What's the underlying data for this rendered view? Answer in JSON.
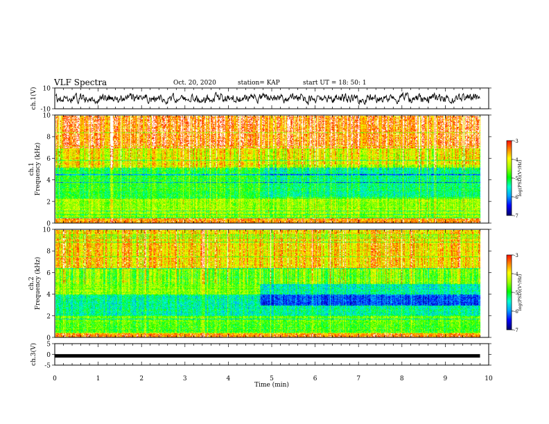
{
  "header": {
    "title": "VLF Spectra",
    "date": "Oct. 20, 2020",
    "station": "station= KAP",
    "start": "start  UT =   18: 50: 1"
  },
  "colors": {
    "colormap": [
      "#000070",
      "#0000ff",
      "#00a0ff",
      "#00ffd0",
      "#00ff00",
      "#a0ff00",
      "#ffff00",
      "#ff8000",
      "#ff0000",
      "#ffffff"
    ]
  },
  "chart_data": [
    {
      "type": "line",
      "panel": "ch1-waveform",
      "ylabel": "ch.1(V)",
      "ylim": [
        -10,
        10
      ],
      "yticks": [
        "10",
        "-10"
      ],
      "x": [
        0,
        0.5,
        1,
        1.5,
        2,
        2.5,
        3,
        3.5,
        4,
        4.5,
        5,
        5.5,
        6,
        6.5,
        7,
        7.5,
        8,
        8.5,
        9,
        9.5,
        9.8
      ],
      "y": [
        0,
        1,
        -1,
        0.5,
        -0.5,
        1,
        0,
        -1,
        0.5,
        0,
        -0.5,
        1,
        0,
        -1,
        0.5,
        0,
        1,
        -0.5,
        0,
        0.5,
        0
      ]
    },
    {
      "type": "heatmap",
      "panel": "ch1-spectrogram",
      "ylabel": "Frequency (kHz)",
      "channel_label": "ch.1",
      "ylim": [
        0,
        10
      ],
      "yticks": [
        "0",
        "2",
        "4",
        "6",
        "8",
        "10"
      ],
      "colorbar": {
        "label": "log(PSD)(V²/Hz)",
        "range": [
          -7,
          -3
        ],
        "ticks": [
          "-3",
          "-4",
          "-5",
          "-6",
          "-7"
        ]
      }
    },
    {
      "type": "heatmap",
      "panel": "ch2-spectrogram",
      "ylabel": "Frequency (kHz)",
      "channel_label": "ch.2",
      "ylim": [
        0,
        10
      ],
      "yticks": [
        "0",
        "2",
        "4",
        "6",
        "8",
        "10"
      ],
      "colorbar": {
        "label": "log(PSD)(V²/Hz)",
        "range": [
          -7,
          -3
        ],
        "ticks": [
          "-3",
          "-4",
          "-5",
          "-6",
          "-7"
        ]
      }
    },
    {
      "type": "line",
      "panel": "ch3-waveform",
      "ylabel": "ch.3(V)",
      "ylim": [
        -5,
        5
      ],
      "yticks": [
        "5",
        "0",
        "-5"
      ],
      "x": [
        0,
        9.8
      ],
      "y": [
        -0.7,
        -0.7
      ]
    }
  ],
  "xaxis": {
    "label": "Time (min)",
    "range": [
      0,
      10
    ],
    "ticks": [
      "0",
      "1",
      "2",
      "3",
      "4",
      "5",
      "6",
      "7",
      "8",
      "9",
      "10"
    ]
  }
}
